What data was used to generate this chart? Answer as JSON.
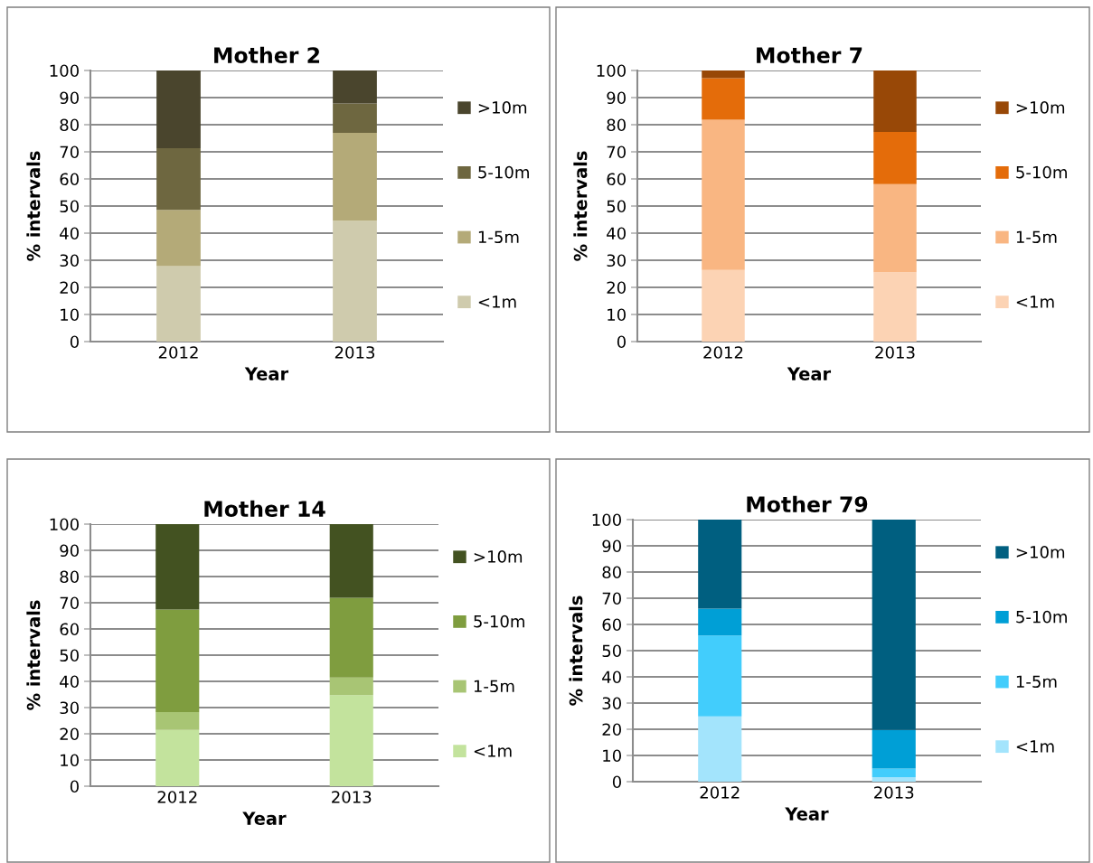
{
  "chart_data": [
    {
      "type": "bar",
      "stacked": true,
      "title": "Mother 2",
      "xlabel": "Year",
      "ylabel": "% intervals",
      "categories": [
        "2012",
        "2013"
      ],
      "ylim": [
        0,
        100
      ],
      "yticks": [
        0,
        10,
        20,
        30,
        40,
        50,
        60,
        70,
        80,
        90,
        100
      ],
      "grid": "y",
      "legend": "right",
      "series": [
        {
          "name": "<1m",
          "color": "#cfcbad",
          "values": [
            27.8,
            44.6
          ]
        },
        {
          "name": "1-5m",
          "color": "#b4aa78",
          "values": [
            20.8,
            32.4
          ]
        },
        {
          "name": "5-10m",
          "color": "#6e6740",
          "values": [
            22.7,
            10.8
          ]
        },
        {
          "name": ">10m",
          "color": "#4a452d",
          "values": [
            28.7,
            12.2
          ]
        }
      ]
    },
    {
      "type": "bar",
      "stacked": true,
      "title": "Mother 7",
      "xlabel": "Year",
      "ylabel": "% intervals",
      "categories": [
        "2012",
        "2013"
      ],
      "ylim": [
        0,
        100
      ],
      "yticks": [
        0,
        10,
        20,
        30,
        40,
        50,
        60,
        70,
        80,
        90,
        100
      ],
      "grid": "y",
      "legend": "right",
      "series": [
        {
          "name": "<1m",
          "color": "#fcd3b4",
          "values": [
            26.4,
            25.6
          ]
        },
        {
          "name": "1-5m",
          "color": "#f9b682",
          "values": [
            55.4,
            32.5
          ]
        },
        {
          "name": "5-10m",
          "color": "#e46c0a",
          "values": [
            15.4,
            19.2
          ]
        },
        {
          "name": ">10m",
          "color": "#984807",
          "values": [
            2.8,
            22.7
          ]
        }
      ]
    },
    {
      "type": "bar",
      "stacked": true,
      "title": "Mother 14",
      "xlabel": "Year",
      "ylabel": "% intervals",
      "categories": [
        "2012",
        "2013"
      ],
      "ylim": [
        0,
        100
      ],
      "yticks": [
        0,
        10,
        20,
        30,
        40,
        50,
        60,
        70,
        80,
        90,
        100
      ],
      "grid": "y",
      "legend": "right",
      "series": [
        {
          "name": "<1m",
          "color": "#c3e39d",
          "values": [
            21.5,
            34.7
          ]
        },
        {
          "name": "1-5m",
          "color": "#a8c574",
          "values": [
            6.8,
            6.8
          ]
        },
        {
          "name": "5-10m",
          "color": "#7f9d3f",
          "values": [
            39.1,
            30.4
          ]
        },
        {
          "name": ">10m",
          "color": "#435221",
          "values": [
            32.6,
            28.1
          ]
        }
      ]
    },
    {
      "type": "bar",
      "stacked": true,
      "title": "Mother 79",
      "xlabel": "Year",
      "ylabel": "% intervals",
      "categories": [
        "2012",
        "2013"
      ],
      "ylim": [
        0,
        100
      ],
      "yticks": [
        0,
        10,
        20,
        30,
        40,
        50,
        60,
        70,
        80,
        90,
        100
      ],
      "grid": "y",
      "legend": "right",
      "series": [
        {
          "name": "<1m",
          "color": "#a3e4fc",
          "values": [
            24.9,
            1.7
          ]
        },
        {
          "name": "1-5m",
          "color": "#42cdfc",
          "values": [
            30.9,
            3.3
          ]
        },
        {
          "name": "5-10m",
          "color": "#009fd6",
          "values": [
            10.2,
            14.7
          ]
        },
        {
          "name": ">10m",
          "color": "#005f80",
          "values": [
            34.0,
            80.3
          ]
        }
      ]
    }
  ]
}
